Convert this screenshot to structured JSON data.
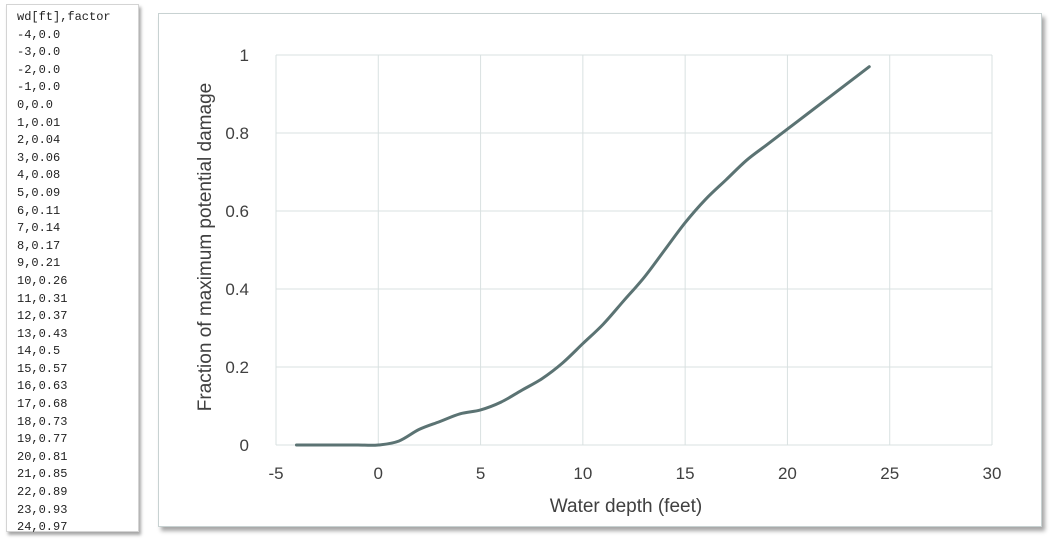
{
  "csv_panel": {
    "lines": [
      "wd[ft],factor",
      "-4,0.0",
      "-3,0.0",
      "-2,0.0",
      "-1,0.0",
      "0,0.0",
      "1,0.01",
      "2,0.04",
      "3,0.06",
      "4,0.08",
      "5,0.09",
      "6,0.11",
      "7,0.14",
      "8,0.17",
      "9,0.21",
      "10,0.26",
      "11,0.31",
      "12,0.37",
      "13,0.43",
      "14,0.5",
      "15,0.57",
      "16,0.63",
      "17,0.68",
      "18,0.73",
      "19,0.77",
      "20,0.81",
      "21,0.85",
      "22,0.89",
      "23,0.93",
      "24,0.97"
    ]
  },
  "chart_data": {
    "type": "line",
    "title": "",
    "xlabel": "Water depth (feet)",
    "ylabel": "Fraction of maximum potential damage",
    "xlim": [
      -5,
      30
    ],
    "ylim": [
      0,
      1
    ],
    "x_ticks": [
      -5,
      0,
      5,
      10,
      15,
      20,
      25,
      30
    ],
    "y_ticks": [
      0,
      0.2,
      0.4,
      0.6,
      0.8,
      1
    ],
    "grid": true,
    "legend": "none",
    "series": [
      {
        "color": "#5b7373",
        "x": [
          -4,
          -3,
          -2,
          -1,
          0,
          1,
          2,
          3,
          4,
          5,
          6,
          7,
          8,
          9,
          10,
          11,
          12,
          13,
          14,
          15,
          16,
          17,
          18,
          19,
          20,
          21,
          22,
          23,
          24
        ],
        "y": [
          0.0,
          0.0,
          0.0,
          0.0,
          0.0,
          0.01,
          0.04,
          0.06,
          0.08,
          0.09,
          0.11,
          0.14,
          0.17,
          0.21,
          0.26,
          0.31,
          0.37,
          0.43,
          0.5,
          0.57,
          0.63,
          0.68,
          0.73,
          0.77,
          0.81,
          0.85,
          0.89,
          0.93,
          0.97
        ]
      }
    ]
  }
}
